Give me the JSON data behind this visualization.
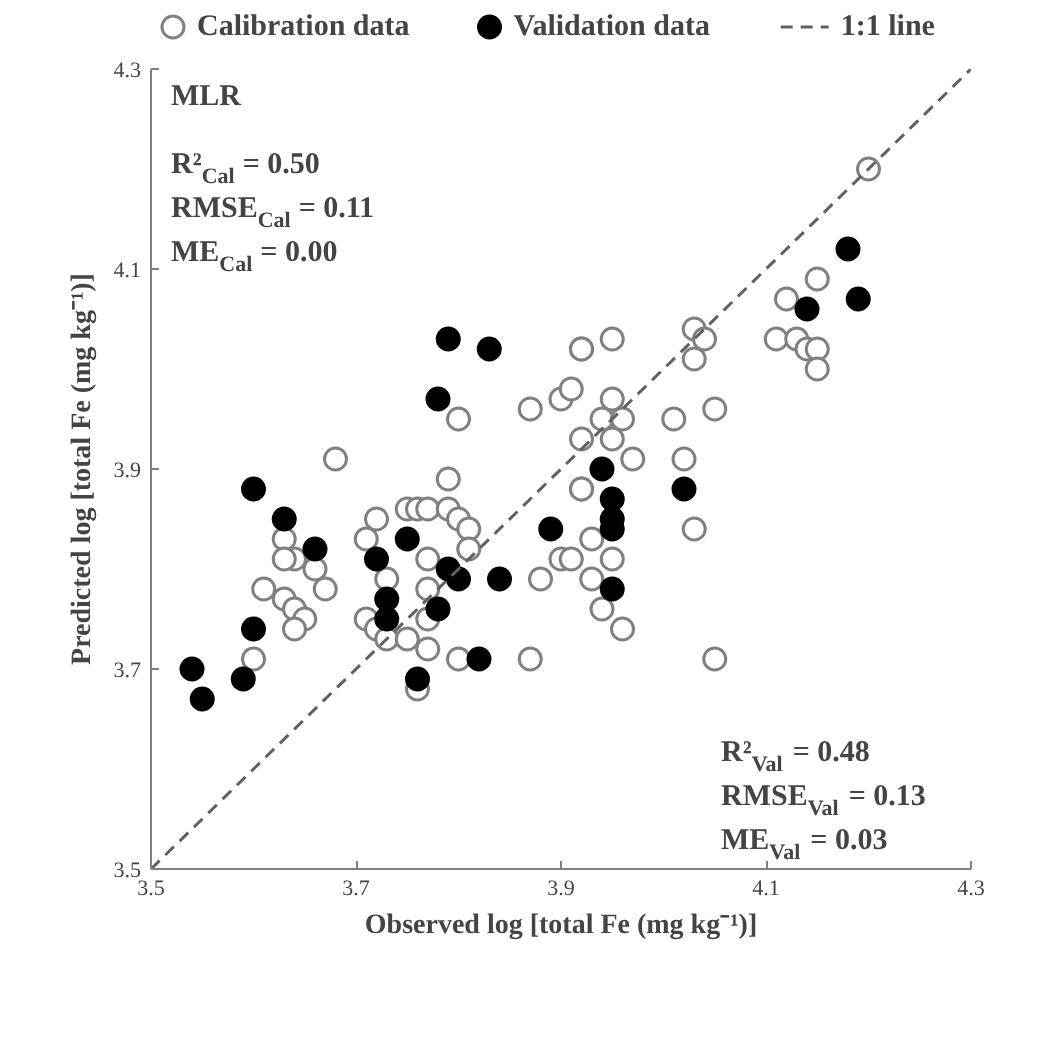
{
  "chart_data": {
    "type": "scatter",
    "xlabel": "Observed log [total Fe (mg kg⁻¹)]",
    "ylabel": "Predicted log [total Fe (mg kg⁻¹)]",
    "xlim": [
      3.5,
      4.3
    ],
    "ylim": [
      3.5,
      4.3
    ],
    "xticks": [
      3.5,
      3.7,
      3.9,
      4.1,
      4.3
    ],
    "yticks": [
      3.5,
      3.7,
      3.9,
      4.1,
      4.3
    ],
    "grid": false,
    "legend": "top",
    "annotations": [
      "MLR",
      "R²$_{Cal}$ = 0.50",
      "RMSE$_{Cal}$ = 0.11",
      "ME$_{Cal}$ = 0.00",
      "R²$_{Val}$ = 0.48",
      "RMSE$_{Val}$ = 0.13",
      "ME$_{Val}$ = 0.03"
    ],
    "series": [
      {
        "name": "Calibration data",
        "marker": "circle",
        "color": "#808080",
        "x": [
          3.68,
          3.79,
          3.72,
          3.75,
          3.76,
          3.77,
          3.79,
          3.8,
          3.81,
          3.81,
          3.71,
          3.73,
          3.77,
          3.77,
          3.63,
          3.64,
          3.63,
          3.66,
          3.61,
          3.67,
          3.63,
          3.64,
          3.65,
          3.64,
          3.6,
          3.71,
          3.72,
          3.73,
          3.75,
          3.77,
          3.77,
          3.8,
          3.76,
          3.88,
          3.87,
          3.9,
          3.92,
          3.92,
          3.9,
          3.87,
          3.8,
          3.92,
          4.2,
          4.15,
          4.12,
          4.11,
          4.13,
          4.14,
          4.15,
          4.15,
          4.03,
          4.04,
          4.03,
          3.95,
          3.92,
          4.05,
          4.01,
          4.02,
          3.91,
          3.95,
          3.94,
          3.96,
          3.95,
          3.97,
          3.92,
          3.93,
          3.95,
          3.91,
          3.93,
          3.94,
          3.96,
          4.05,
          4.03
        ],
        "values": [
          3.91,
          3.89,
          3.85,
          3.86,
          3.86,
          3.86,
          3.86,
          3.85,
          3.84,
          3.82,
          3.83,
          3.79,
          3.81,
          3.78,
          3.83,
          3.81,
          3.81,
          3.8,
          3.78,
          3.78,
          3.77,
          3.76,
          3.75,
          3.74,
          3.71,
          3.75,
          3.74,
          3.73,
          3.73,
          3.75,
          3.72,
          3.71,
          3.68,
          3.79,
          3.71,
          3.81,
          3.88,
          4.02,
          3.97,
          3.96,
          3.95,
          3.93,
          4.2,
          4.09,
          4.07,
          4.03,
          4.03,
          4.02,
          4.02,
          4.0,
          4.04,
          4.03,
          4.01,
          4.03,
          4.02,
          3.96,
          3.95,
          3.91,
          3.98,
          3.97,
          3.95,
          3.95,
          3.93,
          3.91,
          3.88,
          3.83,
          3.81,
          3.81,
          3.79,
          3.76,
          3.74,
          3.71,
          3.84
        ]
      },
      {
        "name": "Validation data",
        "marker": "circle",
        "color": "#000000",
        "x": [
          3.6,
          3.63,
          3.66,
          3.6,
          3.54,
          3.55,
          3.59,
          3.72,
          3.75,
          3.73,
          3.73,
          3.78,
          3.79,
          3.8,
          3.84,
          3.82,
          3.76,
          3.89,
          3.79,
          3.83,
          3.78,
          4.18,
          4.14,
          4.19,
          3.94,
          3.95,
          3.95,
          3.95,
          3.95,
          4.02
        ],
        "values": [
          3.88,
          3.85,
          3.82,
          3.74,
          3.7,
          3.67,
          3.69,
          3.81,
          3.83,
          3.77,
          3.75,
          3.76,
          3.8,
          3.79,
          3.79,
          3.71,
          3.69,
          3.84,
          4.03,
          4.02,
          3.97,
          4.12,
          4.06,
          4.07,
          3.9,
          3.87,
          3.85,
          3.84,
          3.78,
          3.88
        ]
      },
      {
        "name": "1:1 line",
        "type": "line",
        "line_style": "dashed",
        "color": "#606060",
        "x": [
          3.5,
          4.3
        ],
        "values": [
          3.5,
          4.3
        ]
      }
    ]
  }
}
